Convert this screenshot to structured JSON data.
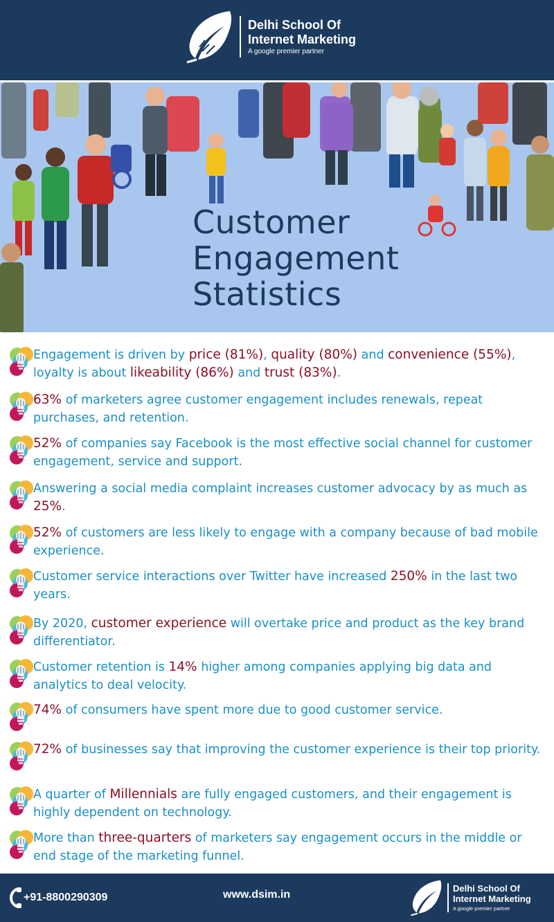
{
  "header": {
    "brand_line1": "Delhi School Of",
    "brand_line2": "Internet Marketing",
    "tagline": "A google premier partner",
    "logo_icon": "feather-leaf-icon"
  },
  "hero": {
    "title_line1": "Customer",
    "title_line2": "Engagement",
    "title_line3": "Statistics",
    "illustration": "crowd-of-people-illustration"
  },
  "stats": [
    {
      "segments": [
        {
          "t": "Engagement is driven by "
        },
        {
          "t": "price (81%)",
          "h": true
        },
        {
          "t": ", "
        },
        {
          "t": "quality (80%)",
          "h": true
        },
        {
          "t": " and "
        },
        {
          "t": "convenience (55%)",
          "h": true
        },
        {
          "t": ", loyalty is about "
        },
        {
          "t": "likeability (86%)",
          "h": true
        },
        {
          "t": " and "
        },
        {
          "t": "trust (83%)",
          "h": true
        },
        {
          "t": "."
        }
      ]
    },
    {
      "segments": [
        {
          "t": "63%",
          "h": true
        },
        {
          "t": " of marketers agree customer engagement includes renewals, repeat purchases, and retention."
        }
      ]
    },
    {
      "segments": [
        {
          "t": "52%",
          "h": true
        },
        {
          "t": " of companies say Facebook is the most effective social channel for customer engagement, service and support."
        }
      ]
    },
    {
      "segments": [
        {
          "t": "Answering a social media complaint increases customer advocacy by as much as "
        },
        {
          "t": "25%",
          "h": true
        },
        {
          "t": "."
        }
      ]
    },
    {
      "segments": [
        {
          "t": "52%",
          "h": true
        },
        {
          "t": " of customers are less likely to engage with a company because of bad mobile experience."
        }
      ]
    },
    {
      "segments": [
        {
          "t": "Customer service interactions over Twitter have increased "
        },
        {
          "t": "250%",
          "h": true
        },
        {
          "t": " in the last two years."
        }
      ]
    },
    {
      "segments": [
        {
          "t": "By 2020, "
        },
        {
          "t": "customer experience",
          "h": true
        },
        {
          "t": " will overtake price and product as the key brand differentiator."
        }
      ]
    },
    {
      "segments": [
        {
          "t": "Customer retention is "
        },
        {
          "t": "14%",
          "h": true
        },
        {
          "t": " higher among companies applying big data and analytics to deal velocity."
        }
      ]
    },
    {
      "segments": [
        {
          "t": "74%",
          "h": true
        },
        {
          "t": " of consumers have spent more due to good customer service."
        }
      ]
    },
    {
      "segments": [
        {
          "t": "72%",
          "h": true
        },
        {
          "t": " of businesses say that improving the customer experience is their top priority."
        }
      ]
    },
    {
      "segments": [
        {
          "t": "A quarter of "
        },
        {
          "t": "Millennials",
          "h": true
        },
        {
          "t": " are fully engaged customers, and their engagement is highly dependent on technology."
        }
      ]
    },
    {
      "segments": [
        {
          "t": "More than "
        },
        {
          "t": "three-quarters",
          "h": true
        },
        {
          "t": " of marketers say engagement occurs in the middle or end stage of the marketing funnel."
        }
      ]
    }
  ],
  "footer": {
    "phone": "+91-8800290309",
    "website": "www.dsim.in",
    "phone_icon": "phone-icon",
    "brand_line1": "Delhi School Of",
    "brand_line2": "Internet Marketing",
    "tagline": "A google premier partner"
  },
  "colors": {
    "navy": "#1c3a5e",
    "sky": "#a9c7ee",
    "stat_text": "#1a8fc6",
    "highlight": "#8a0f24"
  }
}
